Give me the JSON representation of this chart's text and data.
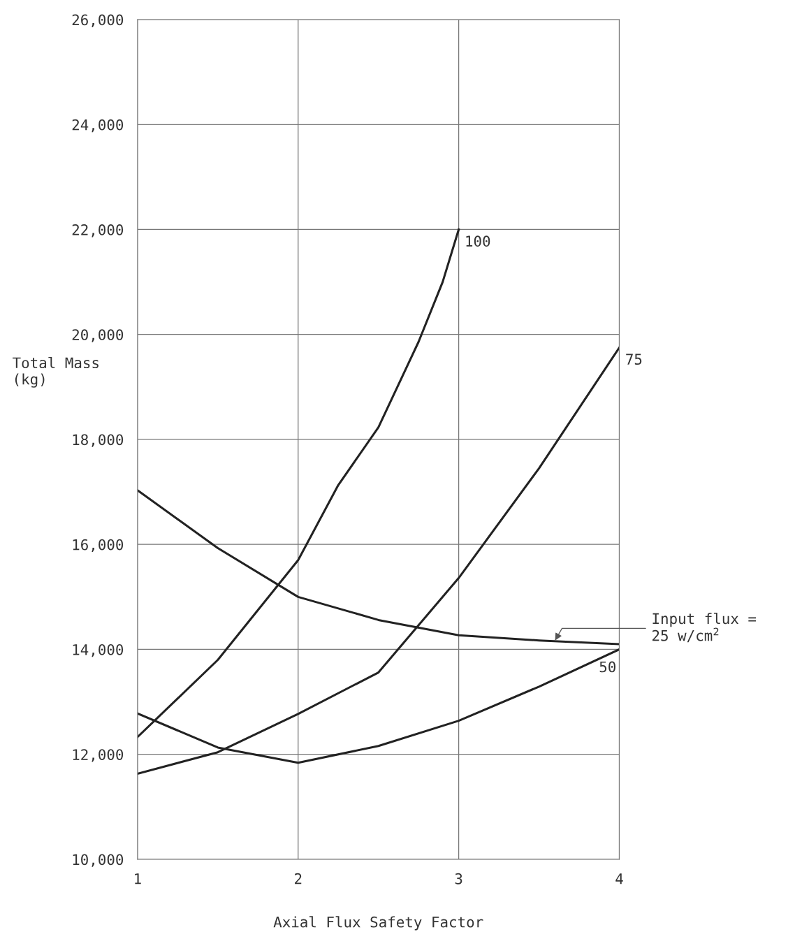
{
  "chart_data": {
    "type": "line",
    "xlabel": "Axial Flux Safety Factor",
    "ylabel": "Total Mass\n(kg)",
    "xlim": [
      1,
      4
    ],
    "xticks": [
      1,
      2,
      3,
      4
    ],
    "ylim": [
      10000,
      26000
    ],
    "yticks": [
      {
        "value": 10000,
        "label": "10,000"
      },
      {
        "value": 12000,
        "label": "12,000"
      },
      {
        "value": 14000,
        "label": "14,000"
      },
      {
        "value": 16000,
        "label": "16,000"
      },
      {
        "value": 18000,
        "label": "18,000"
      },
      {
        "value": 20000,
        "label": "20,000"
      },
      {
        "value": 22000,
        "label": "22,000"
      },
      {
        "value": 24000,
        "label": "24,000"
      },
      {
        "value": 26000,
        "label": "26,000"
      }
    ],
    "grid": true,
    "legend": false,
    "marker": "none",
    "line_style": "solid",
    "series": [
      {
        "color": "#222222",
        "x": [
          1,
          1.5,
          2,
          2.25,
          2.5,
          2.75,
          2.9,
          3
        ],
        "values": [
          12330,
          13800,
          15700,
          17130,
          18230,
          19860,
          21000,
          22000
        ]
      },
      {
        "color": "#222222",
        "x": [
          1,
          1.5,
          2,
          2.5,
          3,
          3.5,
          4
        ],
        "values": [
          11630,
          12040,
          12770,
          13560,
          15360,
          17450,
          19750
        ]
      },
      {
        "color": "#222222",
        "x": [
          1,
          1.5,
          2,
          2.5,
          3,
          3.5,
          4
        ],
        "values": [
          12780,
          12130,
          11840,
          12160,
          12640,
          13290,
          14000
        ]
      },
      {
        "color": "#222222",
        "x": [
          1,
          1.5,
          2,
          2.5,
          3,
          3.5,
          4
        ],
        "values": [
          17030,
          15930,
          15000,
          14560,
          14270,
          14170,
          14100
        ]
      }
    ],
    "annotations": [
      {
        "text": "100",
        "x": 3,
        "y": 22000
      },
      {
        "text": "75",
        "x": 4,
        "y": 19750
      },
      {
        "text": "50",
        "x": 4,
        "y": 14000
      },
      {
        "text": "Input flux =\n25 w/cm$^{2}$",
        "x": 3.6,
        "y": 14170
      }
    ]
  }
}
